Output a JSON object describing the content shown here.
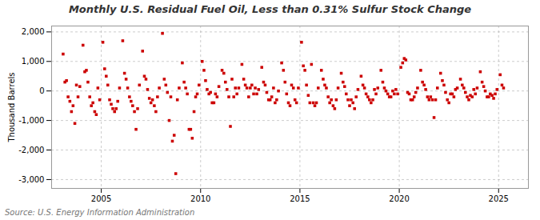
{
  "chart_data": {
    "type": "scatter",
    "title": "Monthly U.S. Residual Fuel Oil, Less than 0.31% Sulfur Stock Change",
    "y_label": "Thousand Barrels",
    "annotations": [
      "Source: U.S. Energy Information Administration"
    ],
    "color": "#cc0000",
    "marker": "square",
    "grid": true,
    "xlim": [
      2002.5,
      2026.5
    ],
    "xticks": [
      2005,
      2010,
      2015,
      2020,
      2025
    ],
    "ylim": [
      -3300,
      2200
    ],
    "yticks": [
      {
        "value": -3000,
        "label": "-3,000"
      },
      {
        "value": -2000,
        "label": "-2,000"
      },
      {
        "value": -1000,
        "label": "-1,000"
      },
      0,
      {
        "value": 1000,
        "label": "1,000"
      },
      {
        "value": 2000,
        "label": "2,000"
      }
    ],
    "x": [
      2003.08,
      2003.17,
      2003.25,
      2003.33,
      2003.42,
      2003.5,
      2003.58,
      2003.67,
      2003.75,
      2003.83,
      2003.92,
      2004.08,
      2004.17,
      2004.25,
      2004.33,
      2004.42,
      2004.5,
      2004.58,
      2004.67,
      2004.75,
      2004.83,
      2004.92,
      2005.08,
      2005.17,
      2005.25,
      2005.33,
      2005.42,
      2005.5,
      2005.58,
      2005.67,
      2005.75,
      2005.83,
      2005.92,
      2006.08,
      2006.17,
      2006.25,
      2006.33,
      2006.42,
      2006.5,
      2006.58,
      2006.67,
      2006.75,
      2006.83,
      2006.92,
      2007.08,
      2007.17,
      2007.25,
      2007.33,
      2007.42,
      2007.5,
      2007.58,
      2007.67,
      2007.75,
      2007.83,
      2007.92,
      2008.08,
      2008.17,
      2008.25,
      2008.33,
      2008.42,
      2008.5,
      2008.58,
      2008.67,
      2008.75,
      2008.83,
      2008.92,
      2009.08,
      2009.17,
      2009.25,
      2009.33,
      2009.42,
      2009.5,
      2009.58,
      2009.67,
      2009.75,
      2009.83,
      2009.92,
      2010.08,
      2010.17,
      2010.25,
      2010.33,
      2010.42,
      2010.5,
      2010.58,
      2010.67,
      2010.75,
      2010.83,
      2010.92,
      2011.08,
      2011.17,
      2011.25,
      2011.33,
      2011.42,
      2011.5,
      2011.58,
      2011.67,
      2011.75,
      2011.83,
      2011.92,
      2012.08,
      2012.17,
      2012.25,
      2012.33,
      2012.42,
      2012.5,
      2012.58,
      2012.67,
      2012.75,
      2012.83,
      2012.92,
      2013.08,
      2013.17,
      2013.25,
      2013.33,
      2013.42,
      2013.5,
      2013.58,
      2013.67,
      2013.75,
      2013.83,
      2013.92,
      2014.08,
      2014.17,
      2014.25,
      2014.33,
      2014.42,
      2014.5,
      2014.58,
      2014.67,
      2014.75,
      2014.83,
      2014.92,
      2015.08,
      2015.17,
      2015.25,
      2015.33,
      2015.42,
      2015.5,
      2015.58,
      2015.67,
      2015.75,
      2015.83,
      2015.92,
      2016.08,
      2016.17,
      2016.25,
      2016.33,
      2016.42,
      2016.5,
      2016.58,
      2016.67,
      2016.75,
      2016.83,
      2016.92,
      2017.08,
      2017.17,
      2017.25,
      2017.33,
      2017.42,
      2017.5,
      2017.58,
      2017.67,
      2017.75,
      2017.83,
      2017.92,
      2018.08,
      2018.17,
      2018.25,
      2018.33,
      2018.42,
      2018.5,
      2018.58,
      2018.67,
      2018.75,
      2018.83,
      2018.92,
      2019.08,
      2019.17,
      2019.25,
      2019.33,
      2019.42,
      2019.5,
      2019.58,
      2019.67,
      2019.75,
      2019.83,
      2019.92,
      2020.08,
      2020.17,
      2020.25,
      2020.33,
      2020.42,
      2020.5,
      2020.58,
      2020.67,
      2020.75,
      2020.83,
      2020.92,
      2021.08,
      2021.17,
      2021.25,
      2021.33,
      2021.42,
      2021.5,
      2021.58,
      2021.67,
      2021.75,
      2021.83,
      2021.92,
      2022.08,
      2022.17,
      2022.25,
      2022.33,
      2022.42,
      2022.5,
      2022.58,
      2022.67,
      2022.75,
      2022.83,
      2022.92,
      2023.08,
      2023.17,
      2023.25,
      2023.33,
      2023.42,
      2023.5,
      2023.58,
      2023.67,
      2023.75,
      2023.83,
      2023.92,
      2024.08,
      2024.17,
      2024.25,
      2024.33,
      2024.42,
      2024.5,
      2024.58,
      2024.67,
      2024.75,
      2024.83,
      2024.92,
      2025.08,
      2025.17,
      2025.25
    ],
    "values": [
      1250,
      300,
      350,
      -200,
      -350,
      -700,
      -500,
      -1100,
      200,
      -200,
      150,
      1550,
      650,
      700,
      300,
      -200,
      -500,
      -400,
      -700,
      -800,
      100,
      -300,
      1650,
      750,
      500,
      200,
      -300,
      -450,
      -600,
      -700,
      -600,
      -350,
      100,
      1700,
      600,
      400,
      100,
      -200,
      -350,
      -500,
      -700,
      -1300,
      -600,
      200,
      1350,
      500,
      400,
      50,
      -250,
      -400,
      -300,
      -500,
      -700,
      -200,
      100,
      1950,
      400,
      200,
      -50,
      -1000,
      -200,
      -1700,
      -1500,
      -2800,
      -300,
      100,
      950,
      300,
      100,
      -100,
      -1300,
      -1300,
      -1600,
      -700,
      -200,
      -100,
      200,
      1000,
      700,
      350,
      50,
      -100,
      -50,
      -400,
      -400,
      -100,
      -200,
      150,
      700,
      600,
      300,
      50,
      -200,
      -1200,
      400,
      -200,
      100,
      -100,
      100,
      900,
      400,
      200,
      100,
      -200,
      100,
      200,
      -100,
      100,
      -100,
      50,
      800,
      300,
      200,
      -50,
      -300,
      -300,
      -200,
      100,
      -400,
      -300,
      0,
      950,
      700,
      300,
      -100,
      -400,
      -500,
      200,
      100,
      -300,
      -400,
      100,
      1650,
      850,
      700,
      200,
      -150,
      -400,
      900,
      -400,
      -500,
      -400,
      100,
      700,
      400,
      200,
      100,
      -200,
      -400,
      -300,
      -500,
      -600,
      -300,
      100,
      600,
      300,
      150,
      -100,
      -300,
      -500,
      -300,
      -400,
      -600,
      -200,
      50,
      500,
      200,
      100,
      -100,
      -200,
      -300,
      -400,
      -300,
      50,
      -100,
      100,
      700,
      300,
      100,
      0,
      -100,
      -200,
      -200,
      0,
      -100,
      50,
      -100,
      800,
      950,
      1100,
      1050,
      -50,
      -100,
      -300,
      -300,
      -200,
      -50,
      100,
      700,
      300,
      200,
      50,
      -200,
      -300,
      -200,
      -300,
      -900,
      -300,
      100,
      600,
      350,
      200,
      -50,
      -300,
      -400,
      -100,
      -100,
      -200,
      50,
      100,
      400,
      200,
      100,
      -50,
      -200,
      -300,
      -150,
      -200,
      50,
      -100,
      100,
      650,
      300,
      150,
      0,
      -200,
      -200,
      -100,
      -150,
      -250,
      -100,
      50,
      550,
      200,
      100
    ]
  }
}
